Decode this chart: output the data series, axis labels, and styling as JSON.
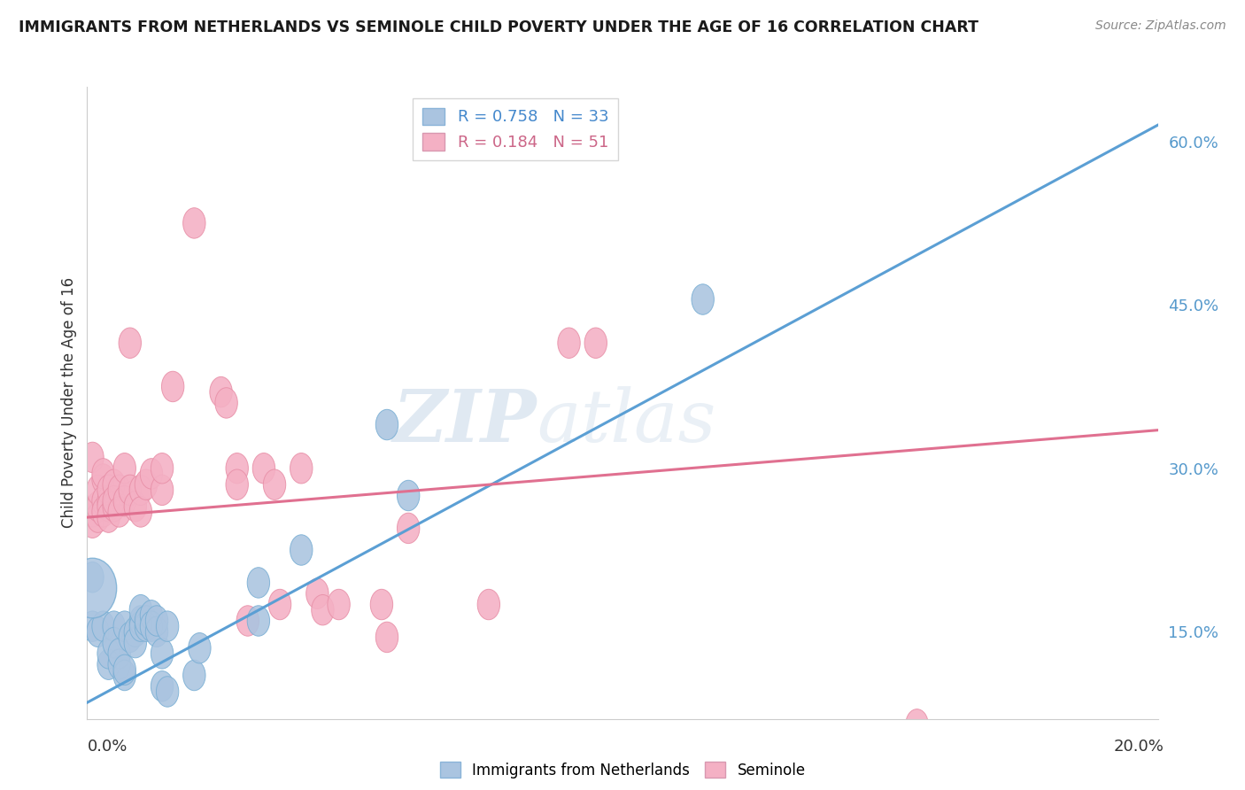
{
  "title": "IMMIGRANTS FROM NETHERLANDS VS SEMINOLE CHILD POVERTY UNDER THE AGE OF 16 CORRELATION CHART",
  "source": "Source: ZipAtlas.com",
  "ylabel": "Child Poverty Under the Age of 16",
  "yticks": [
    0.15,
    0.3,
    0.45,
    0.6
  ],
  "ytick_labels": [
    "15.0%",
    "30.0%",
    "45.0%",
    "60.0%"
  ],
  "xmin": 0.0,
  "xmax": 0.2,
  "ymin": 0.07,
  "ymax": 0.65,
  "series1_color": "#aac4e0",
  "series1_edge": "#7aafd4",
  "series1_line": "#5b9fd4",
  "series2_color": "#f4b0c4",
  "series2_edge": "#e890a8",
  "series2_line": "#e07090",
  "blue_line_x0": 0.0,
  "blue_line_y0": 0.085,
  "blue_line_x1": 0.2,
  "blue_line_y1": 0.615,
  "pink_line_x0": 0.0,
  "pink_line_y0": 0.255,
  "pink_line_x1": 0.2,
  "pink_line_y1": 0.335,
  "blue_points": [
    [
      0.001,
      0.155
    ],
    [
      0.002,
      0.15
    ],
    [
      0.003,
      0.155
    ],
    [
      0.004,
      0.12
    ],
    [
      0.004,
      0.13
    ],
    [
      0.005,
      0.155
    ],
    [
      0.005,
      0.14
    ],
    [
      0.006,
      0.12
    ],
    [
      0.006,
      0.13
    ],
    [
      0.007,
      0.11
    ],
    [
      0.007,
      0.115
    ],
    [
      0.007,
      0.155
    ],
    [
      0.008,
      0.145
    ],
    [
      0.009,
      0.15
    ],
    [
      0.009,
      0.14
    ],
    [
      0.01,
      0.16
    ],
    [
      0.01,
      0.155
    ],
    [
      0.01,
      0.17
    ],
    [
      0.011,
      0.155
    ],
    [
      0.011,
      0.16
    ],
    [
      0.012,
      0.165
    ],
    [
      0.012,
      0.155
    ],
    [
      0.013,
      0.15
    ],
    [
      0.013,
      0.16
    ],
    [
      0.014,
      0.1
    ],
    [
      0.014,
      0.13
    ],
    [
      0.015,
      0.095
    ],
    [
      0.015,
      0.155
    ],
    [
      0.02,
      0.11
    ],
    [
      0.021,
      0.135
    ],
    [
      0.032,
      0.195
    ],
    [
      0.032,
      0.16
    ],
    [
      0.04,
      0.225
    ],
    [
      0.056,
      0.34
    ],
    [
      0.06,
      0.275
    ],
    [
      0.115,
      0.455
    ],
    [
      0.001,
      0.2
    ]
  ],
  "pink_points": [
    [
      0.001,
      0.26
    ],
    [
      0.001,
      0.25
    ],
    [
      0.001,
      0.31
    ],
    [
      0.002,
      0.255
    ],
    [
      0.002,
      0.265
    ],
    [
      0.002,
      0.28
    ],
    [
      0.003,
      0.29
    ],
    [
      0.003,
      0.27
    ],
    [
      0.003,
      0.26
    ],
    [
      0.003,
      0.295
    ],
    [
      0.004,
      0.27
    ],
    [
      0.004,
      0.28
    ],
    [
      0.004,
      0.265
    ],
    [
      0.004,
      0.255
    ],
    [
      0.005,
      0.285
    ],
    [
      0.005,
      0.265
    ],
    [
      0.005,
      0.27
    ],
    [
      0.006,
      0.28
    ],
    [
      0.006,
      0.26
    ],
    [
      0.007,
      0.27
    ],
    [
      0.007,
      0.3
    ],
    [
      0.008,
      0.28
    ],
    [
      0.008,
      0.415
    ],
    [
      0.009,
      0.265
    ],
    [
      0.01,
      0.28
    ],
    [
      0.01,
      0.26
    ],
    [
      0.011,
      0.285
    ],
    [
      0.012,
      0.295
    ],
    [
      0.014,
      0.28
    ],
    [
      0.014,
      0.3
    ],
    [
      0.016,
      0.375
    ],
    [
      0.02,
      0.525
    ],
    [
      0.025,
      0.37
    ],
    [
      0.026,
      0.36
    ],
    [
      0.028,
      0.3
    ],
    [
      0.028,
      0.285
    ],
    [
      0.03,
      0.16
    ],
    [
      0.033,
      0.3
    ],
    [
      0.035,
      0.285
    ],
    [
      0.036,
      0.175
    ],
    [
      0.04,
      0.3
    ],
    [
      0.043,
      0.185
    ],
    [
      0.044,
      0.17
    ],
    [
      0.047,
      0.175
    ],
    [
      0.055,
      0.175
    ],
    [
      0.056,
      0.145
    ],
    [
      0.06,
      0.245
    ],
    [
      0.075,
      0.175
    ],
    [
      0.09,
      0.415
    ],
    [
      0.095,
      0.415
    ],
    [
      0.155,
      0.065
    ]
  ],
  "watermark_text": "ZIP",
  "watermark_text2": "atlas",
  "background_color": "#ffffff",
  "grid_color": "#d8d8d8"
}
